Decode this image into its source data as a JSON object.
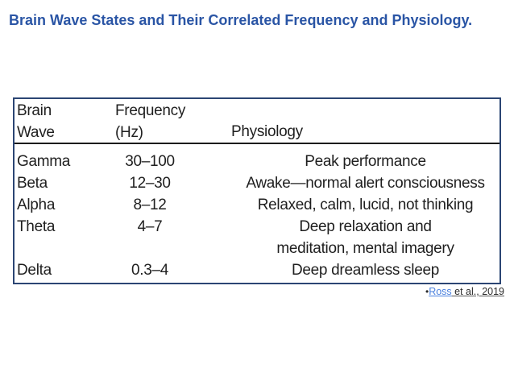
{
  "title": {
    "text": "Brain Wave States and Their Correlated Frequency and Physiology.",
    "color": "#2a55a5"
  },
  "table": {
    "border_color": "#2b4573",
    "header_rule_color": "#1b1b1b",
    "text_color": "#1f1f1f",
    "headers": {
      "brain_wave_line1": "Brain",
      "brain_wave_line2": "Wave",
      "frequency_line1": "Frequency",
      "frequency_line2": "(Hz)",
      "physiology": "Physiology"
    },
    "rows": [
      {
        "wave": "Gamma",
        "frequency": "30–100",
        "physiology": "Peak performance"
      },
      {
        "wave": "Beta",
        "frequency": "12–30",
        "physiology": "Awake—normal alert consciousness"
      },
      {
        "wave": "Alpha",
        "frequency": "8–12",
        "physiology": "Relaxed, calm, lucid, not thinking"
      },
      {
        "wave": "Theta",
        "frequency": "4–7",
        "physiology": "Deep relaxation and\nmeditation, mental imagery"
      },
      {
        "wave": "Delta",
        "frequency": "0.3–4",
        "physiology": "Deep dreamless sleep"
      }
    ]
  },
  "citation": {
    "bullet": "•",
    "link_text": "Ross",
    "rest_text": " et al., 2019",
    "link_color": "#4a80de"
  }
}
